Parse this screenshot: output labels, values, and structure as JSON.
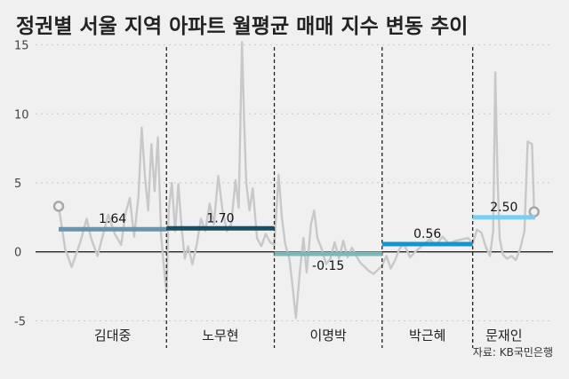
{
  "chart_data": {
    "type": "line",
    "title": "정권별 서울 지역 아파트 월평균 매매 지수 변동 추이",
    "source": "자료: KB국민은행",
    "ylim": [
      -6,
      16
    ],
    "yticks": [
      15,
      10,
      5,
      0,
      -5
    ],
    "grid": true,
    "x_range": [
      1998.0,
      2020.1
    ],
    "eras": [
      {
        "name": "김대중",
        "start": 1998.0,
        "end": 2003.0,
        "average": 1.64,
        "average_label": "1.64",
        "color": "#6b93ab"
      },
      {
        "name": "노무현",
        "start": 2003.0,
        "end": 2008.0,
        "average": 1.7,
        "average_label": "1.70",
        "color": "#154f63"
      },
      {
        "name": "이명박",
        "start": 2008.0,
        "end": 2013.0,
        "average": -0.15,
        "average_label": "-0.15",
        "color": "#7cb8b8"
      },
      {
        "name": "박근혜",
        "start": 2013.0,
        "end": 2017.2,
        "average": 0.56,
        "average_label": "0.56",
        "color": "#1993cf"
      },
      {
        "name": "문재인",
        "start": 2017.2,
        "end": 2020.1,
        "average": 2.5,
        "average_label": "2.50",
        "color": "#7ccef1"
      }
    ],
    "series": [
      {
        "color": "#c8c8c8",
        "points": [
          [
            1998.0,
            3.3
          ],
          [
            1998.3,
            0.2
          ],
          [
            1998.6,
            -1.1
          ],
          [
            1999.0,
            0.7
          ],
          [
            1999.3,
            2.4
          ],
          [
            1999.5,
            1.0
          ],
          [
            1999.8,
            -0.3
          ],
          [
            2000.0,
            0.9
          ],
          [
            2000.3,
            2.7
          ],
          [
            2000.6,
            1.3
          ],
          [
            2000.9,
            0.5
          ],
          [
            2001.1,
            2.8
          ],
          [
            2001.3,
            3.9
          ],
          [
            2001.5,
            1.1
          ],
          [
            2001.7,
            4.0
          ],
          [
            2001.85,
            9.0
          ],
          [
            2002.0,
            5.5
          ],
          [
            2002.15,
            3.0
          ],
          [
            2002.3,
            7.8
          ],
          [
            2002.45,
            4.4
          ],
          [
            2002.6,
            8.3
          ],
          [
            2002.75,
            1.2
          ],
          [
            2002.9,
            -1.4
          ],
          [
            2003.0,
            -3.0
          ],
          [
            2003.1,
            3.0
          ],
          [
            2003.25,
            5.0
          ],
          [
            2003.4,
            1.5
          ],
          [
            2003.55,
            4.9
          ],
          [
            2003.7,
            1.8
          ],
          [
            2003.85,
            -0.5
          ],
          [
            2004.0,
            0.4
          ],
          [
            2004.2,
            -0.9
          ],
          [
            2004.4,
            0.5
          ],
          [
            2004.6,
            2.4
          ],
          [
            2004.8,
            1.5
          ],
          [
            2005.0,
            3.5
          ],
          [
            2005.2,
            2.0
          ],
          [
            2005.4,
            5.5
          ],
          [
            2005.6,
            3.0
          ],
          [
            2005.8,
            1.5
          ],
          [
            2006.0,
            2.0
          ],
          [
            2006.2,
            5.2
          ],
          [
            2006.35,
            3.2
          ],
          [
            2006.5,
            15.2
          ],
          [
            2006.6,
            9.5
          ],
          [
            2006.7,
            5.0
          ],
          [
            2006.85,
            3.0
          ],
          [
            2007.0,
            4.6
          ],
          [
            2007.2,
            1.0
          ],
          [
            2007.4,
            0.4
          ],
          [
            2007.6,
            1.3
          ],
          [
            2007.8,
            0.7
          ],
          [
            2008.0,
            0.5
          ],
          [
            2008.2,
            5.6
          ],
          [
            2008.35,
            2.5
          ],
          [
            2008.5,
            0.6
          ],
          [
            2008.7,
            -0.5
          ],
          [
            2008.85,
            -2.5
          ],
          [
            2009.0,
            -4.8
          ],
          [
            2009.2,
            -1.2
          ],
          [
            2009.35,
            1.0
          ],
          [
            2009.5,
            -1.5
          ],
          [
            2009.7,
            2.0
          ],
          [
            2009.85,
            3.0
          ],
          [
            2010.0,
            1.0
          ],
          [
            2010.2,
            0.2
          ],
          [
            2010.4,
            -0.9
          ],
          [
            2010.6,
            -0.5
          ],
          [
            2010.8,
            0.7
          ],
          [
            2011.0,
            -0.5
          ],
          [
            2011.2,
            0.8
          ],
          [
            2011.4,
            -0.4
          ],
          [
            2011.6,
            0.3
          ],
          [
            2011.8,
            -0.3
          ],
          [
            2012.0,
            -0.8
          ],
          [
            2012.2,
            -1.1
          ],
          [
            2012.4,
            -1.4
          ],
          [
            2012.6,
            -1.6
          ],
          [
            2012.8,
            -1.3
          ],
          [
            2013.0,
            -1.0
          ],
          [
            2013.2,
            -0.3
          ],
          [
            2013.4,
            -1.2
          ],
          [
            2013.6,
            -0.6
          ],
          [
            2013.8,
            0.2
          ],
          [
            2014.0,
            0.6
          ],
          [
            2014.3,
            -0.4
          ],
          [
            2014.6,
            0.1
          ],
          [
            2014.9,
            0.5
          ],
          [
            2015.2,
            0.9
          ],
          [
            2015.5,
            0.5
          ],
          [
            2015.8,
            1.1
          ],
          [
            2016.1,
            0.6
          ],
          [
            2016.4,
            0.8
          ],
          [
            2016.7,
            0.9
          ],
          [
            2017.0,
            1.0
          ],
          [
            2017.2,
            0.6
          ],
          [
            2017.4,
            1.6
          ],
          [
            2017.6,
            1.4
          ],
          [
            2017.8,
            0.4
          ],
          [
            2018.0,
            -0.3
          ],
          [
            2018.15,
            1.5
          ],
          [
            2018.25,
            13.0
          ],
          [
            2018.35,
            5.5
          ],
          [
            2018.45,
            1.0
          ],
          [
            2018.6,
            -0.2
          ],
          [
            2018.8,
            -0.5
          ],
          [
            2019.0,
            -0.3
          ],
          [
            2019.2,
            -0.6
          ],
          [
            2019.4,
            0.2
          ],
          [
            2019.6,
            1.5
          ],
          [
            2019.75,
            8.0
          ],
          [
            2019.85,
            7.9
          ],
          [
            2019.95,
            7.8
          ],
          [
            2020.05,
            2.9
          ]
        ]
      }
    ],
    "endpoints": [
      [
        1998.0,
        3.3
      ],
      [
        2020.05,
        2.9
      ]
    ]
  }
}
